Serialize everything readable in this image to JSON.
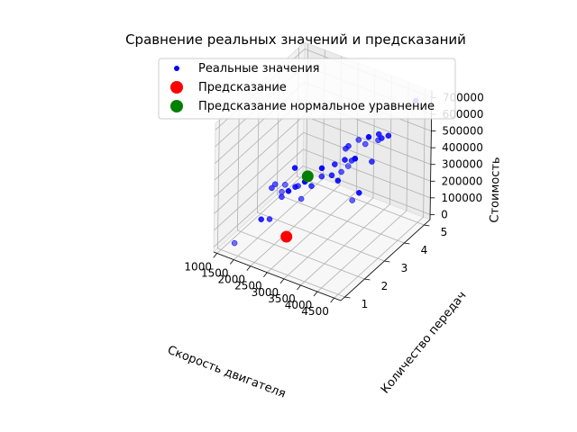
{
  "chart_data": {
    "type": "scatter",
    "projection": "3d",
    "title": "Сравнение реальных значений и предсказаний",
    "xlabel": "Скорость двигателя",
    "ylabel": "Количество передач",
    "zlabel": "Стоимость",
    "x_ticks": [
      "1000",
      "1500",
      "2000",
      "2500",
      "3000",
      "3500",
      "4000",
      "4500"
    ],
    "y_ticks": [
      "1",
      "2",
      "3",
      "4",
      "5"
    ],
    "z_ticks": [
      "0",
      "100000",
      "200000",
      "300000",
      "400000",
      "500000",
      "600000",
      "700000"
    ],
    "xlim": [
      900,
      4700
    ],
    "ylim": [
      0.8,
      5.3
    ],
    "zlim": [
      -30000,
      740000
    ],
    "grid": true,
    "legend_position": "top-center",
    "colors": {
      "real": "#0000ff",
      "prediction": "#ff0000",
      "normal_eq": "#008000"
    },
    "series": [
      {
        "name": "Реальные значения",
        "color": "#0000ff",
        "marker_size": 5,
        "points": [
          {
            "x": 1400,
            "y": 1,
            "z": 40000
          },
          {
            "x": 1600,
            "y": 2,
            "z": 90000
          },
          {
            "x": 1850,
            "y": 2,
            "z": 110000
          },
          {
            "x": 2200,
            "y": 3,
            "z": 150000
          },
          {
            "x": 2700,
            "y": 4,
            "z": 190000
          },
          {
            "x": 2500,
            "y": 3,
            "z": 250000
          },
          {
            "x": 2800,
            "y": 4,
            "z": 250000
          },
          {
            "x": 2300,
            "y": 3,
            "z": 260000
          },
          {
            "x": 2600,
            "y": 4,
            "z": 280000
          },
          {
            "x": 2100,
            "y": 3,
            "z": 220000
          },
          {
            "x": 3000,
            "y": 4,
            "z": 300000
          },
          {
            "x": 2900,
            "y": 4,
            "z": 330000
          },
          {
            "x": 3100,
            "y": 4,
            "z": 340000
          },
          {
            "x": 2400,
            "y": 3,
            "z": 300000
          },
          {
            "x": 2000,
            "y": 3,
            "z": 320000
          },
          {
            "x": 3200,
            "y": 4,
            "z": 360000
          },
          {
            "x": 3300,
            "y": 5,
            "z": 370000
          },
          {
            "x": 2800,
            "y": 3,
            "z": 380000
          },
          {
            "x": 3400,
            "y": 5,
            "z": 390000
          },
          {
            "x": 1900,
            "y": 2,
            "z": 300000
          },
          {
            "x": 2200,
            "y": 2,
            "z": 300000
          },
          {
            "x": 3600,
            "y": 5,
            "z": 420000
          },
          {
            "x": 3000,
            "y": 4,
            "z": 420000
          },
          {
            "x": 3500,
            "y": 4,
            "z": 470000
          },
          {
            "x": 3200,
            "y": 4,
            "z": 360000
          },
          {
            "x": 3700,
            "y": 4,
            "z": 380000
          },
          {
            "x": 3300,
            "y": 4,
            "z": 480000
          },
          {
            "x": 3600,
            "y": 4,
            "z": 520000
          },
          {
            "x": 3900,
            "y": 4,
            "z": 560000
          },
          {
            "x": 3500,
            "y": 3,
            "z": 550000
          },
          {
            "x": 2300,
            "y": 2,
            "z": 350000
          },
          {
            "x": 2600,
            "y": 2,
            "z": 360000
          },
          {
            "x": 2800,
            "y": 3,
            "z": 330000
          },
          {
            "x": 4300,
            "y": 2,
            "z": 410000
          },
          {
            "x": 4500,
            "y": 2,
            "z": 470000
          },
          {
            "x": 4400,
            "y": 5,
            "z": 690000
          },
          {
            "x": 2000,
            "y": 2,
            "z": 330000
          },
          {
            "x": 2400,
            "y": 2,
            "z": 320000
          },
          {
            "x": 3100,
            "y": 3,
            "z": 360000
          },
          {
            "x": 2200,
            "y": 2,
            "z": 270000
          }
        ]
      },
      {
        "name": "Предсказание",
        "color": "#ff0000",
        "marker_size": 12,
        "points": [
          {
            "x": 2650,
            "y": 1.5,
            "z": 120000
          }
        ]
      },
      {
        "name": "Предсказание нормальное уравнение",
        "color": "#008000",
        "marker_size": 12,
        "points": [
          {
            "x": 2500,
            "y": 2.8,
            "z": 330000
          }
        ]
      }
    ]
  }
}
